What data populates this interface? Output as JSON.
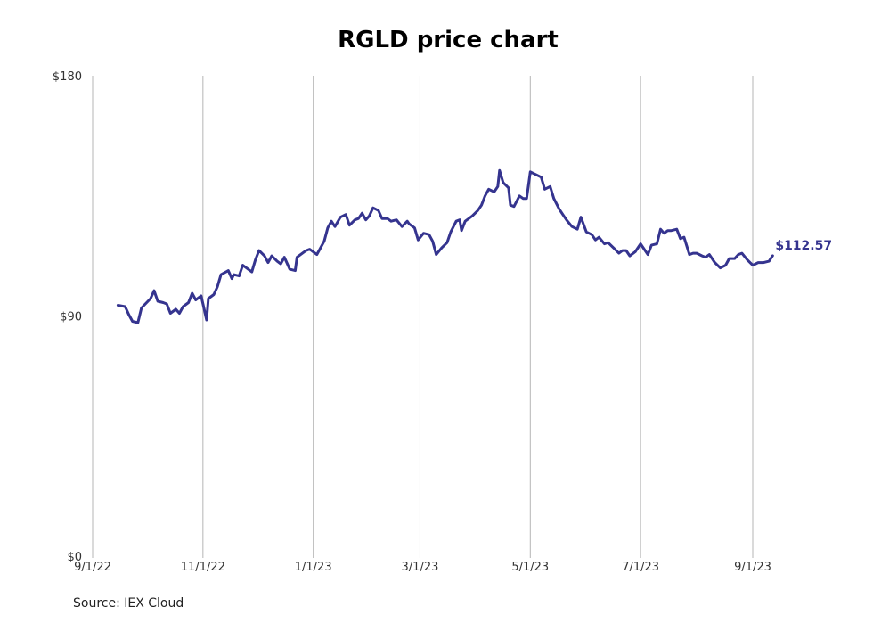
{
  "chart_data": {
    "type": "line",
    "title": "RGLD price chart",
    "source": "Source: IEX Cloud",
    "ylim": [
      0,
      180
    ],
    "y_ticks": [
      {
        "value": 0,
        "label": "$0"
      },
      {
        "value": 90,
        "label": "$90"
      },
      {
        "value": 180,
        "label": "$180"
      }
    ],
    "x_ticks": [
      {
        "date": "2022-09-01",
        "label": "9/1/22"
      },
      {
        "date": "2022-11-01",
        "label": "11/1/22"
      },
      {
        "date": "2023-01-01",
        "label": "1/1/23"
      },
      {
        "date": "2023-03-01",
        "label": "3/1/23"
      },
      {
        "date": "2023-05-01",
        "label": "5/1/23"
      },
      {
        "date": "2023-07-01",
        "label": "7/1/23"
      },
      {
        "date": "2023-09-01",
        "label": "9/1/23"
      }
    ],
    "grid": "vertical",
    "line_color": "#35348f",
    "end_label": "$112.57",
    "series": [
      {
        "points": [
          [
            "2022-09-15",
            94.0
          ],
          [
            "2022-09-19",
            93.5
          ],
          [
            "2022-09-21",
            90.5
          ],
          [
            "2022-09-23",
            88.0
          ],
          [
            "2022-09-26",
            87.5
          ],
          [
            "2022-09-28",
            93.0
          ],
          [
            "2022-10-03",
            96.5
          ],
          [
            "2022-10-05",
            99.5
          ],
          [
            "2022-10-07",
            95.5
          ],
          [
            "2022-10-10",
            95.0
          ],
          [
            "2022-10-12",
            94.5
          ],
          [
            "2022-10-14",
            91.0
          ],
          [
            "2022-10-17",
            92.5
          ],
          [
            "2022-10-19",
            91.0
          ],
          [
            "2022-10-21",
            93.5
          ],
          [
            "2022-10-24",
            95.0
          ],
          [
            "2022-10-26",
            98.5
          ],
          [
            "2022-10-28",
            96.0
          ],
          [
            "2022-10-31",
            97.5
          ],
          [
            "2022-11-02",
            91.5
          ],
          [
            "2022-11-03",
            88.5
          ],
          [
            "2022-11-04",
            96.5
          ],
          [
            "2022-11-07",
            98.0
          ],
          [
            "2022-11-09",
            101.0
          ],
          [
            "2022-11-11",
            105.5
          ],
          [
            "2022-11-15",
            107.0
          ],
          [
            "2022-11-17",
            104.0
          ],
          [
            "2022-11-18",
            105.5
          ],
          [
            "2022-11-21",
            105.0
          ],
          [
            "2022-11-23",
            109.0
          ],
          [
            "2022-11-28",
            106.5
          ],
          [
            "2022-11-30",
            111.0
          ],
          [
            "2022-12-02",
            114.5
          ],
          [
            "2022-12-05",
            112.5
          ],
          [
            "2022-12-07",
            110.0
          ],
          [
            "2022-12-09",
            112.5
          ],
          [
            "2022-12-12",
            110.5
          ],
          [
            "2022-12-14",
            109.5
          ],
          [
            "2022-12-16",
            112.0
          ],
          [
            "2022-12-19",
            107.5
          ],
          [
            "2022-12-22",
            107.0
          ],
          [
            "2022-12-23",
            112.0
          ],
          [
            "2022-12-28",
            114.5
          ],
          [
            "2022-12-30",
            115.0
          ],
          [
            "2023-01-03",
            113.0
          ],
          [
            "2023-01-05",
            115.5
          ],
          [
            "2023-01-07",
            118.0
          ],
          [
            "2023-01-09",
            123.0
          ],
          [
            "2023-01-11",
            125.5
          ],
          [
            "2023-01-13",
            123.5
          ],
          [
            "2023-01-16",
            127.0
          ],
          [
            "2023-01-19",
            128.0
          ],
          [
            "2023-01-21",
            124.0
          ],
          [
            "2023-01-24",
            126.0
          ],
          [
            "2023-01-26",
            126.5
          ],
          [
            "2023-01-28",
            128.5
          ],
          [
            "2023-01-30",
            126.0
          ],
          [
            "2023-02-01",
            127.5
          ],
          [
            "2023-02-03",
            130.5
          ],
          [
            "2023-02-06",
            129.5
          ],
          [
            "2023-02-08",
            126.5
          ],
          [
            "2023-02-11",
            126.5
          ],
          [
            "2023-02-13",
            125.5
          ],
          [
            "2023-02-16",
            126.0
          ],
          [
            "2023-02-19",
            123.5
          ],
          [
            "2023-02-22",
            125.5
          ],
          [
            "2023-02-23",
            124.5
          ],
          [
            "2023-02-26",
            123.0
          ],
          [
            "2023-02-28",
            118.5
          ],
          [
            "2023-03-03",
            121.0
          ],
          [
            "2023-03-06",
            120.5
          ],
          [
            "2023-03-08",
            118.0
          ],
          [
            "2023-03-10",
            113.0
          ],
          [
            "2023-03-13",
            115.5
          ],
          [
            "2023-03-16",
            117.5
          ],
          [
            "2023-03-18",
            121.5
          ],
          [
            "2023-03-21",
            125.5
          ],
          [
            "2023-03-23",
            126.0
          ],
          [
            "2023-03-24",
            122.0
          ],
          [
            "2023-03-26",
            125.5
          ],
          [
            "2023-03-28",
            126.5
          ],
          [
            "2023-03-30",
            127.5
          ],
          [
            "2023-04-02",
            129.5
          ],
          [
            "2023-04-04",
            131.5
          ],
          [
            "2023-04-06",
            135.0
          ],
          [
            "2023-04-08",
            137.5
          ],
          [
            "2023-04-11",
            136.5
          ],
          [
            "2023-04-13",
            138.5
          ],
          [
            "2023-04-14",
            144.5
          ],
          [
            "2023-04-16",
            140.0
          ],
          [
            "2023-04-19",
            138.0
          ],
          [
            "2023-04-20",
            131.5
          ],
          [
            "2023-04-22",
            131.0
          ],
          [
            "2023-04-25",
            135.0
          ],
          [
            "2023-04-27",
            134.0
          ],
          [
            "2023-04-29",
            134.0
          ],
          [
            "2023-05-01",
            144.0
          ],
          [
            "2023-05-04",
            143.0
          ],
          [
            "2023-05-07",
            142.0
          ],
          [
            "2023-05-09",
            137.5
          ],
          [
            "2023-05-12",
            138.5
          ],
          [
            "2023-05-14",
            134.0
          ],
          [
            "2023-05-17",
            130.0
          ],
          [
            "2023-05-19",
            128.0
          ],
          [
            "2023-05-21",
            126.0
          ],
          [
            "2023-05-24",
            123.5
          ],
          [
            "2023-05-27",
            122.5
          ],
          [
            "2023-05-29",
            127.0
          ],
          [
            "2023-06-01",
            121.5
          ],
          [
            "2023-06-04",
            120.5
          ],
          [
            "2023-06-06",
            118.5
          ],
          [
            "2023-06-08",
            119.5
          ],
          [
            "2023-06-11",
            117.0
          ],
          [
            "2023-06-13",
            117.5
          ],
          [
            "2023-06-16",
            115.5
          ],
          [
            "2023-06-19",
            113.5
          ],
          [
            "2023-06-21",
            114.5
          ],
          [
            "2023-06-23",
            114.5
          ],
          [
            "2023-06-25",
            112.5
          ],
          [
            "2023-06-28",
            114.0
          ],
          [
            "2023-07-01",
            117.0
          ],
          [
            "2023-07-03",
            115.0
          ],
          [
            "2023-07-05",
            113.0
          ],
          [
            "2023-07-07",
            116.5
          ],
          [
            "2023-07-10",
            117.0
          ],
          [
            "2023-07-12",
            122.5
          ],
          [
            "2023-07-14",
            121.0
          ],
          [
            "2023-07-16",
            122.0
          ],
          [
            "2023-07-18",
            122.0
          ],
          [
            "2023-07-21",
            122.5
          ],
          [
            "2023-07-23",
            119.0
          ],
          [
            "2023-07-25",
            119.5
          ],
          [
            "2023-07-28",
            113.0
          ],
          [
            "2023-07-30",
            113.5
          ],
          [
            "2023-08-01",
            113.5
          ],
          [
            "2023-08-04",
            112.5
          ],
          [
            "2023-08-06",
            112.0
          ],
          [
            "2023-08-08",
            113.0
          ],
          [
            "2023-08-11",
            110.0
          ],
          [
            "2023-08-14",
            108.0
          ],
          [
            "2023-08-17",
            109.0
          ],
          [
            "2023-08-19",
            111.5
          ],
          [
            "2023-08-22",
            111.5
          ],
          [
            "2023-08-24",
            113.0
          ],
          [
            "2023-08-26",
            113.5
          ],
          [
            "2023-08-29",
            111.0
          ],
          [
            "2023-09-01",
            109.0
          ],
          [
            "2023-09-04",
            110.0
          ],
          [
            "2023-09-07",
            110.0
          ],
          [
            "2023-09-10",
            110.5
          ],
          [
            "2023-09-12",
            112.57
          ]
        ]
      }
    ]
  }
}
